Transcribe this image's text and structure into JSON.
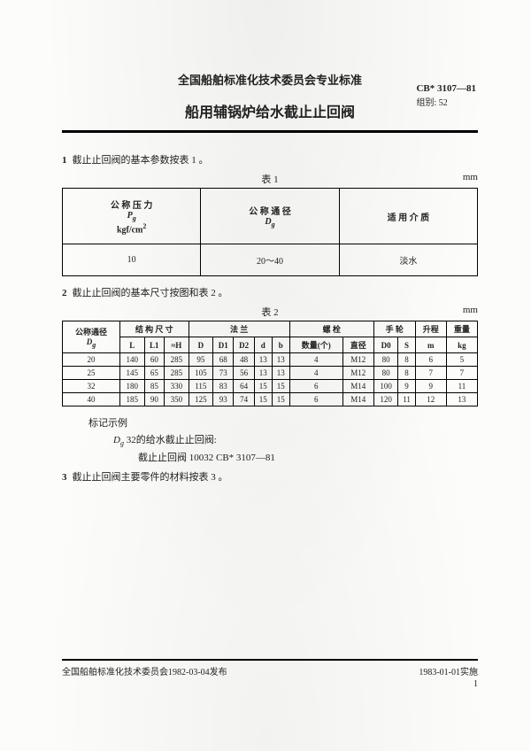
{
  "header": {
    "org": "全国船舶标准化技术委员会专业标准",
    "title": "船用辅锅炉给水截止止回阀",
    "standard_code": "CB* 3107—81",
    "group": "组别: 52"
  },
  "section1": {
    "num": "1",
    "text": "截止止回阀的基本参数按表 1 。",
    "caption": "表 1",
    "unit": "mm",
    "head_pressure_l1": "公 称 压 力",
    "head_pressure_l2": "P",
    "head_pressure_sub": "g",
    "head_pressure_l3": "kgf/cm",
    "head_pressure_sup": "2",
    "head_diameter_l1": "公 称 通 径",
    "head_diameter_l2": "D",
    "head_diameter_sub": "g",
    "head_medium": "适 用 介 质",
    "val_pressure": "10",
    "val_diameter": "20～40",
    "val_medium": "淡水"
  },
  "section2": {
    "num": "2",
    "text": "截止止回阀的基本尺寸按图和表 2 。",
    "caption": "表 2",
    "unit": "mm",
    "group_dg": "公称通径",
    "group_struct": "结 构 尺 寸",
    "group_flange": "法    兰",
    "group_bolt": "螺 栓",
    "group_wheel": "手 轮",
    "group_lift": "升程",
    "group_weight": "重量",
    "cols": [
      "Dg",
      "L",
      "L1",
      "≈H",
      "D",
      "D1",
      "D2",
      "d",
      "b",
      "数量(个)",
      "直径",
      "D0",
      "S",
      "m",
      "kg"
    ],
    "rows": [
      [
        "20",
        "140",
        "60",
        "285",
        "95",
        "68",
        "48",
        "13",
        "13",
        "4",
        "M12",
        "80",
        "8",
        "6",
        "5"
      ],
      [
        "25",
        "145",
        "65",
        "285",
        "105",
        "73",
        "56",
        "13",
        "13",
        "4",
        "M12",
        "80",
        "8",
        "7",
        "7"
      ],
      [
        "32",
        "180",
        "85",
        "330",
        "115",
        "83",
        "64",
        "15",
        "15",
        "6",
        "M14",
        "100",
        "9",
        "9",
        "11"
      ],
      [
        "40",
        "185",
        "90",
        "350",
        "125",
        "93",
        "74",
        "15",
        "15",
        "6",
        "M14",
        "120",
        "11",
        "12",
        "13"
      ]
    ]
  },
  "note": {
    "heading": "标记示例",
    "line1a": "D",
    "line1sub": "g",
    "line1b": " 32的给水截止止回阀:",
    "line2": "截止止回阀  10032   CB* 3107—81"
  },
  "section3": {
    "num": "3",
    "text": "截止止回阀主要零件的材料按表 3 。"
  },
  "footer": {
    "left": "全国船舶标准化技术委员会1982-03-04发布",
    "right": "1983-01-01实施",
    "page": "1"
  }
}
